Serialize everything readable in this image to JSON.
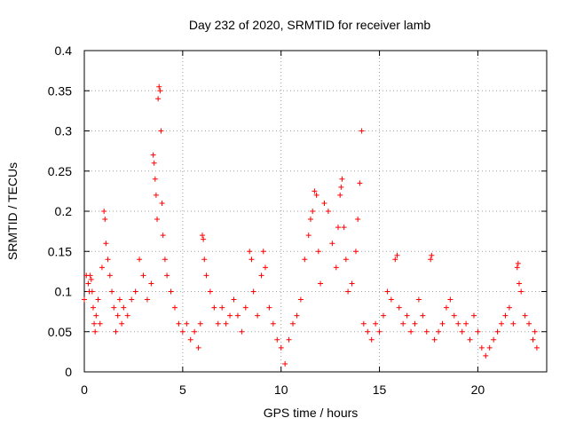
{
  "chart_data": {
    "type": "scatter",
    "title": "Day 232 of 2020, SRMTID for receiver lamb",
    "xlabel": "GPS time / hours",
    "ylabel": "SRMTID / TECUs",
    "xlim": [
      0,
      23.5
    ],
    "ylim": [
      0,
      0.4
    ],
    "x_ticks": [
      0,
      5,
      10,
      15,
      20
    ],
    "x_tick_labels": [
      "0",
      "5",
      "10",
      "15",
      "20"
    ],
    "y_ticks": [
      0,
      0.05,
      0.1,
      0.15,
      0.2,
      0.25,
      0.3,
      0.35,
      0.4
    ],
    "y_tick_labels": [
      "0",
      "0.05",
      "0.1",
      "0.15",
      "0.2",
      "0.25",
      "0.3",
      "0.35",
      "0.4"
    ],
    "grid": true,
    "marker": "plus",
    "color": "#ff0000",
    "series": [
      {
        "name": "SRMTID",
        "points": [
          [
            0.0,
            0.09
          ],
          [
            0.1,
            0.12
          ],
          [
            0.2,
            0.11
          ],
          [
            0.25,
            0.1
          ],
          [
            0.3,
            0.12
          ],
          [
            0.35,
            0.115
          ],
          [
            0.4,
            0.1
          ],
          [
            0.45,
            0.08
          ],
          [
            0.5,
            0.06
          ],
          [
            0.55,
            0.05
          ],
          [
            0.6,
            0.07
          ],
          [
            0.7,
            0.09
          ],
          [
            0.8,
            0.06
          ],
          [
            0.9,
            0.13
          ],
          [
            1.0,
            0.2
          ],
          [
            1.05,
            0.19
          ],
          [
            1.1,
            0.16
          ],
          [
            1.2,
            0.14
          ],
          [
            1.3,
            0.12
          ],
          [
            1.4,
            0.1
          ],
          [
            1.5,
            0.08
          ],
          [
            1.6,
            0.05
          ],
          [
            1.7,
            0.07
          ],
          [
            1.8,
            0.09
          ],
          [
            1.9,
            0.06
          ],
          [
            2.0,
            0.08
          ],
          [
            2.2,
            0.07
          ],
          [
            2.4,
            0.09
          ],
          [
            2.6,
            0.1
          ],
          [
            2.8,
            0.14
          ],
          [
            3.0,
            0.12
          ],
          [
            3.2,
            0.09
          ],
          [
            3.4,
            0.11
          ],
          [
            3.5,
            0.27
          ],
          [
            3.55,
            0.26
          ],
          [
            3.6,
            0.24
          ],
          [
            3.65,
            0.22
          ],
          [
            3.7,
            0.19
          ],
          [
            3.75,
            0.34
          ],
          [
            3.8,
            0.355
          ],
          [
            3.85,
            0.35
          ],
          [
            3.9,
            0.3
          ],
          [
            3.95,
            0.21
          ],
          [
            4.0,
            0.17
          ],
          [
            4.1,
            0.14
          ],
          [
            4.2,
            0.12
          ],
          [
            4.4,
            0.1
          ],
          [
            4.6,
            0.08
          ],
          [
            4.8,
            0.06
          ],
          [
            5.0,
            0.05
          ],
          [
            5.2,
            0.06
          ],
          [
            5.4,
            0.04
          ],
          [
            5.6,
            0.05
          ],
          [
            5.8,
            0.03
          ],
          [
            5.9,
            0.06
          ],
          [
            6.0,
            0.17
          ],
          [
            6.05,
            0.165
          ],
          [
            6.1,
            0.14
          ],
          [
            6.2,
            0.12
          ],
          [
            6.4,
            0.1
          ],
          [
            6.6,
            0.08
          ],
          [
            6.8,
            0.06
          ],
          [
            7.0,
            0.08
          ],
          [
            7.2,
            0.06
          ],
          [
            7.4,
            0.07
          ],
          [
            7.6,
            0.09
          ],
          [
            7.8,
            0.07
          ],
          [
            8.0,
            0.05
          ],
          [
            8.2,
            0.08
          ],
          [
            8.4,
            0.15
          ],
          [
            8.5,
            0.14
          ],
          [
            8.6,
            0.1
          ],
          [
            8.8,
            0.07
          ],
          [
            9.0,
            0.12
          ],
          [
            9.1,
            0.15
          ],
          [
            9.2,
            0.13
          ],
          [
            9.4,
            0.08
          ],
          [
            9.6,
            0.06
          ],
          [
            9.8,
            0.04
          ],
          [
            10.0,
            0.03
          ],
          [
            10.2,
            0.01
          ],
          [
            10.4,
            0.04
          ],
          [
            10.6,
            0.06
          ],
          [
            10.8,
            0.07
          ],
          [
            11.0,
            0.09
          ],
          [
            11.2,
            0.14
          ],
          [
            11.4,
            0.17
          ],
          [
            11.5,
            0.19
          ],
          [
            11.6,
            0.2
          ],
          [
            11.7,
            0.225
          ],
          [
            11.8,
            0.22
          ],
          [
            11.9,
            0.15
          ],
          [
            12.0,
            0.11
          ],
          [
            12.2,
            0.21
          ],
          [
            12.4,
            0.2
          ],
          [
            12.6,
            0.16
          ],
          [
            12.8,
            0.13
          ],
          [
            12.9,
            0.18
          ],
          [
            13.0,
            0.22
          ],
          [
            13.05,
            0.23
          ],
          [
            13.1,
            0.24
          ],
          [
            13.2,
            0.18
          ],
          [
            13.3,
            0.14
          ],
          [
            13.4,
            0.1
          ],
          [
            13.6,
            0.11
          ],
          [
            13.8,
            0.15
          ],
          [
            13.9,
            0.19
          ],
          [
            14.0,
            0.235
          ],
          [
            14.1,
            0.3
          ],
          [
            14.2,
            0.06
          ],
          [
            14.4,
            0.05
          ],
          [
            14.6,
            0.04
          ],
          [
            14.8,
            0.06
          ],
          [
            15.0,
            0.05
          ],
          [
            15.2,
            0.07
          ],
          [
            15.4,
            0.1
          ],
          [
            15.6,
            0.09
          ],
          [
            15.8,
            0.14
          ],
          [
            15.9,
            0.145
          ],
          [
            16.0,
            0.08
          ],
          [
            16.2,
            0.06
          ],
          [
            16.4,
            0.07
          ],
          [
            16.6,
            0.05
          ],
          [
            16.8,
            0.06
          ],
          [
            17.0,
            0.09
          ],
          [
            17.2,
            0.07
          ],
          [
            17.4,
            0.05
          ],
          [
            17.6,
            0.14
          ],
          [
            17.65,
            0.145
          ],
          [
            17.8,
            0.04
          ],
          [
            18.0,
            0.05
          ],
          [
            18.2,
            0.06
          ],
          [
            18.4,
            0.08
          ],
          [
            18.6,
            0.09
          ],
          [
            18.8,
            0.07
          ],
          [
            19.0,
            0.06
          ],
          [
            19.2,
            0.05
          ],
          [
            19.4,
            0.06
          ],
          [
            19.6,
            0.04
          ],
          [
            19.8,
            0.07
          ],
          [
            20.0,
            0.05
          ],
          [
            20.2,
            0.03
          ],
          [
            20.4,
            0.02
          ],
          [
            20.6,
            0.03
          ],
          [
            20.8,
            0.04
          ],
          [
            21.0,
            0.05
          ],
          [
            21.2,
            0.06
          ],
          [
            21.4,
            0.07
          ],
          [
            21.6,
            0.08
          ],
          [
            21.8,
            0.06
          ],
          [
            22.0,
            0.13
          ],
          [
            22.05,
            0.135
          ],
          [
            22.1,
            0.11
          ],
          [
            22.2,
            0.1
          ],
          [
            22.4,
            0.07
          ],
          [
            22.6,
            0.06
          ],
          [
            22.8,
            0.04
          ],
          [
            22.9,
            0.05
          ],
          [
            23.0,
            0.03
          ]
        ]
      }
    ]
  }
}
